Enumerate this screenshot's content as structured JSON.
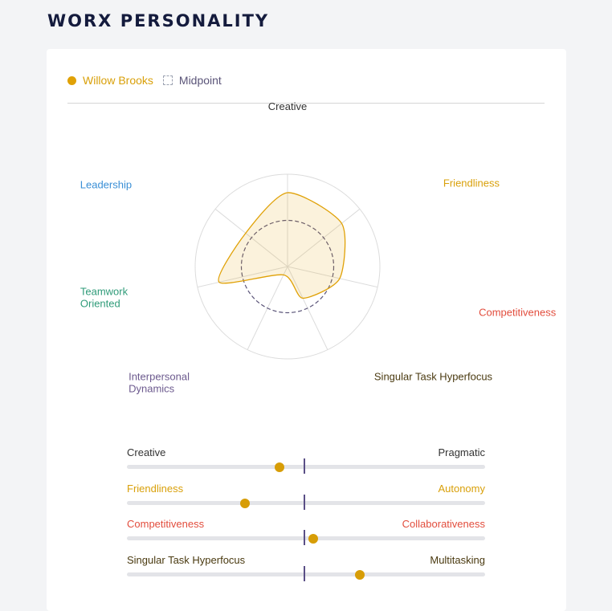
{
  "page": {
    "title": "WORX PERSONALITY"
  },
  "legend": {
    "person_name": "Willow Brooks",
    "midpoint_label": "Midpoint",
    "person_color": "#e0a106",
    "midpoint_color": "#5a5478"
  },
  "chart_data": {
    "type": "radar",
    "axes": [
      {
        "label": "Creative",
        "color": "#333333"
      },
      {
        "label": "Friendliness",
        "color": "#d9a00a"
      },
      {
        "label": "Competitiveness",
        "color": "#e24d3d"
      },
      {
        "label": "Singular Task Hyperfocus",
        "color": "#4a3a10"
      },
      {
        "label": "Interpersonal Dynamics",
        "color": "#6c5a8e"
      },
      {
        "label": "Teamwork Oriented",
        "color": "#2f9b79"
      },
      {
        "label": "Leadership",
        "color": "#3a8fd6"
      }
    ],
    "range": [
      0,
      1
    ],
    "series": [
      {
        "name": "Willow Brooks",
        "color": "#e0a106",
        "values": [
          0.8,
          0.75,
          0.58,
          0.38,
          0.1,
          0.76,
          0.58
        ]
      }
    ],
    "midpoint": {
      "name": "Midpoint",
      "value": 0.5
    }
  },
  "sliders": [
    {
      "left": "Creative",
      "right": "Pragmatic",
      "left_color": "#333333",
      "right_color": "#333333",
      "value": 0.425
    },
    {
      "left": "Friendliness",
      "right": "Autonomy",
      "left_color": "#d9a00a",
      "right_color": "#d9a00a",
      "value": 0.33
    },
    {
      "left": "Competitiveness",
      "right": "Collaborativeness",
      "left_color": "#e24d3d",
      "right_color": "#e24d3d",
      "value": 0.52
    },
    {
      "left": "Singular Task Hyperfocus",
      "right": "Multitasking",
      "left_color": "#4a3a10",
      "right_color": "#4a3a10",
      "value": 0.65
    }
  ]
}
